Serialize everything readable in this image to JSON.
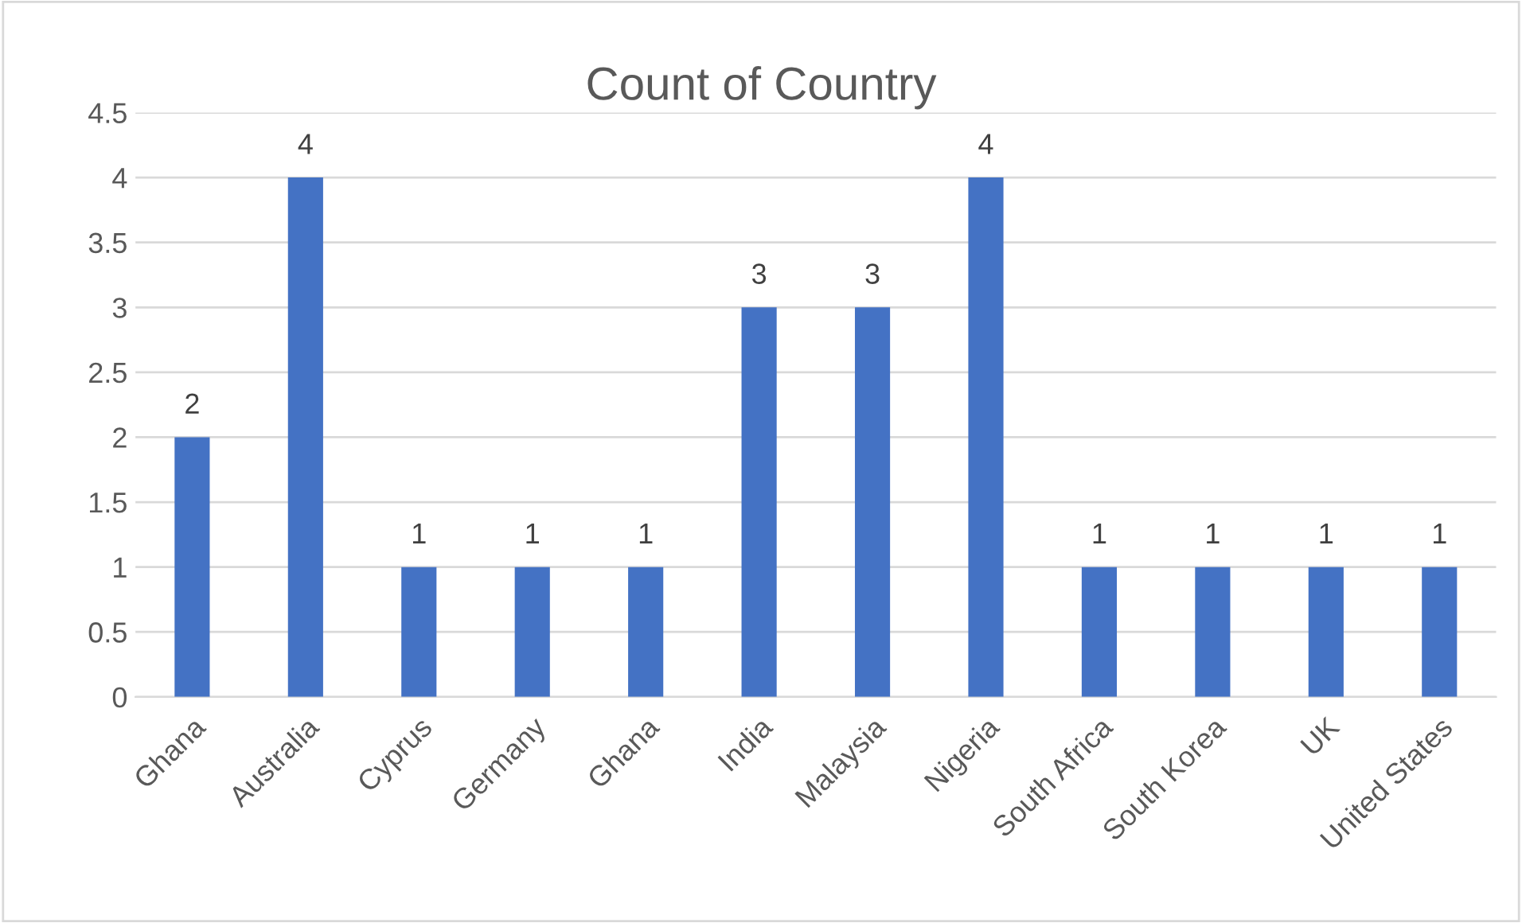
{
  "chart_data": {
    "type": "bar",
    "title": "Count of Country",
    "categories": [
      "Ghana",
      "Australia",
      "Cyprus",
      "Germany",
      "Ghana",
      "India",
      "Malaysia",
      "Nigeria",
      "South Africa",
      "South Korea",
      "UK",
      "United States"
    ],
    "values": [
      2,
      4,
      1,
      1,
      1,
      3,
      3,
      4,
      1,
      1,
      1,
      1
    ],
    "color": "#4472c4",
    "ylim": [
      0,
      4.5
    ],
    "yticks": [
      0,
      0.5,
      1,
      1.5,
      2,
      2.5,
      3,
      3.5,
      4,
      4.5
    ],
    "grid": "y",
    "data_labels": true
  }
}
